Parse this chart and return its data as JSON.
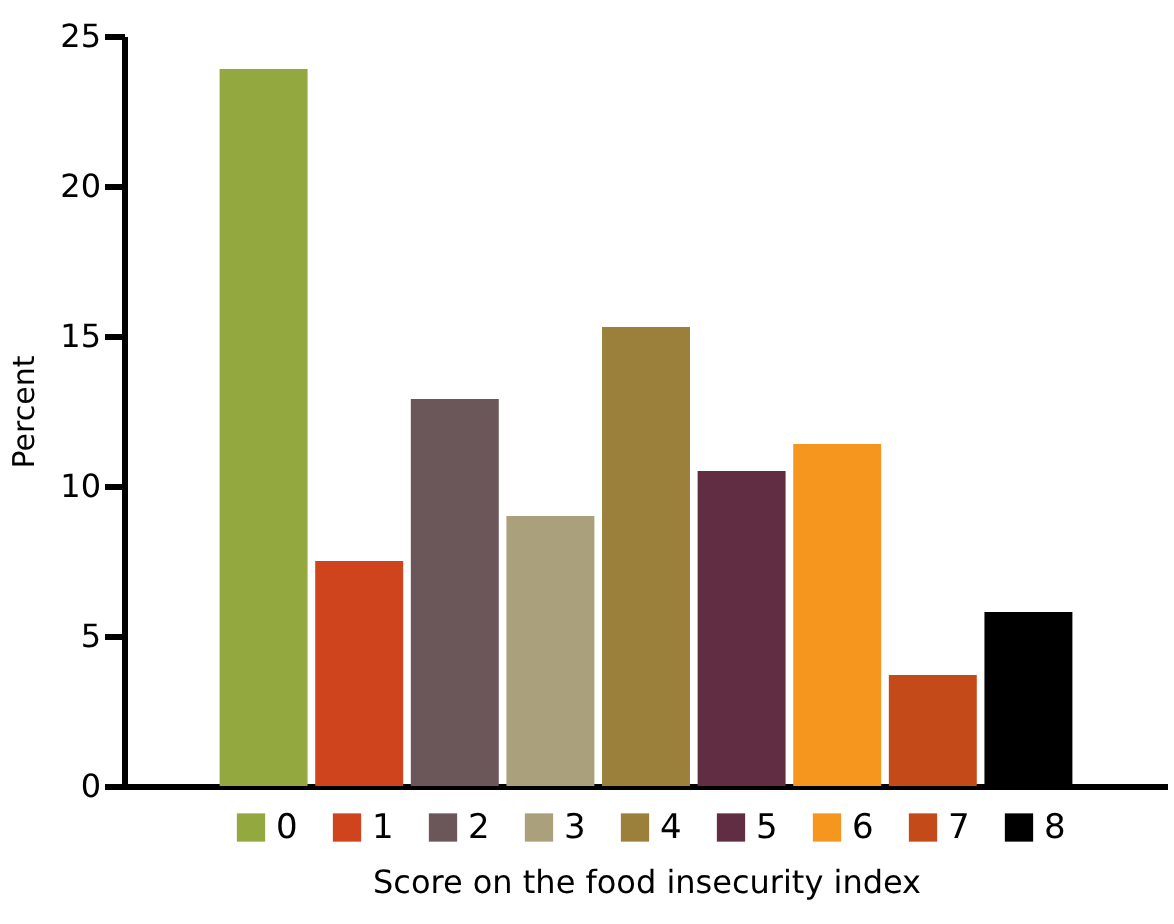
{
  "chart_data": {
    "type": "bar",
    "xlabel": "Score on the food insecurity index",
    "ylabel": "Percent",
    "categories": [
      null,
      null,
      null,
      null,
      null,
      null,
      null,
      null,
      null
    ],
    "series": [
      {
        "name": "0",
        "color": "#94a840",
        "values": [
          23.9,
          null,
          null,
          null,
          null,
          null,
          null,
          null,
          null
        ]
      },
      {
        "name": "1",
        "color": "#cf431d",
        "values": [
          null,
          7.5,
          null,
          null,
          null,
          null,
          null,
          null,
          null
        ]
      },
      {
        "name": "2",
        "color": "#6b5659",
        "values": [
          null,
          null,
          12.9,
          null,
          null,
          null,
          null,
          null,
          null
        ]
      },
      {
        "name": "3",
        "color": "#aaa07b",
        "values": [
          null,
          null,
          null,
          9.0,
          null,
          null,
          null,
          null,
          null
        ]
      },
      {
        "name": "4",
        "color": "#9b803c",
        "values": [
          null,
          null,
          null,
          null,
          15.3,
          null,
          null,
          null,
          null
        ]
      },
      {
        "name": "5",
        "color": "#602d43",
        "values": [
          null,
          null,
          null,
          null,
          null,
          10.5,
          null,
          null,
          null
        ]
      },
      {
        "name": "6",
        "color": "#f7961e",
        "values": [
          null,
          null,
          null,
          null,
          null,
          null,
          11.4,
          null,
          null
        ]
      },
      {
        "name": "7",
        "color": "#c54a19",
        "values": [
          null,
          null,
          null,
          null,
          null,
          null,
          null,
          3.7,
          null
        ]
      },
      {
        "name": "8",
        "color": "#000000",
        "values": [
          null,
          null,
          null,
          null,
          null,
          null,
          null,
          null,
          5.8
        ]
      }
    ],
    "ylim": [
      0,
      25
    ],
    "yticks": [
      0,
      5,
      10,
      15,
      20,
      25
    ],
    "stacked": true,
    "grid": false,
    "legend": "bottom",
    "tick_labels": "y"
  }
}
